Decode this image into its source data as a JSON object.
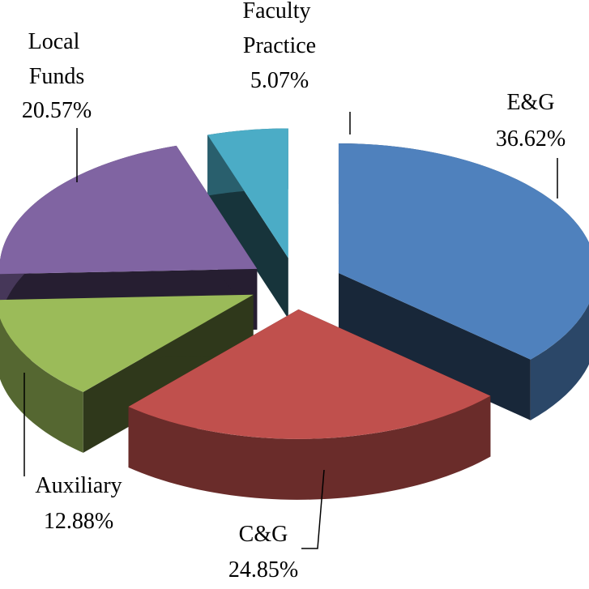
{
  "chart_data": {
    "type": "pie",
    "categories": [
      "E&G",
      "C&G",
      "Auxiliary",
      "Local Funds",
      "Faculty Practice"
    ],
    "values": [
      36.62,
      24.85,
      12.88,
      20.57,
      5.07
    ],
    "value_labels": [
      "36.62%",
      "24.85%",
      "12.88%",
      "20.57%",
      "5.07%"
    ],
    "colors": [
      "#4f81bd",
      "#c0504d",
      "#9bbb59",
      "#8064a2",
      "#4bacc6"
    ]
  }
}
